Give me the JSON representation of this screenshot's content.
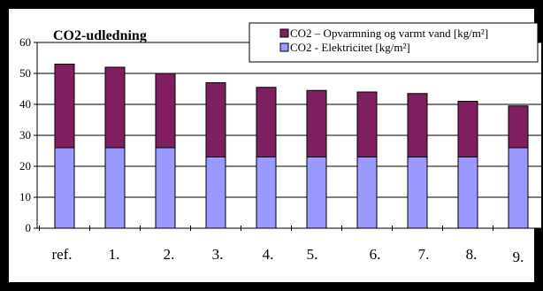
{
  "chart_data": {
    "type": "bar",
    "stacked": true,
    "title": "CO2-udledning",
    "xlabel": "",
    "ylabel": "",
    "categories": [
      "ref.",
      "1.",
      "2.",
      "3.",
      "4.",
      "5.",
      "6.",
      "7.",
      "8.",
      "9."
    ],
    "ylim": [
      0,
      60
    ],
    "yticks": [
      0,
      10,
      20,
      30,
      40,
      50,
      60
    ],
    "grid": true,
    "legend_position": "top-right",
    "series": [
      {
        "name": "CO2 - Elektricitet [kg/m²]",
        "color": "#9999ff",
        "values": [
          26,
          26,
          26,
          23,
          23,
          23,
          23,
          23,
          23,
          26
        ]
      },
      {
        "name": "CO2 – Opvarmning og varmt vand [kg/m²]",
        "color": "#7f1f5f",
        "values": [
          27,
          26,
          24,
          24,
          22.5,
          21.5,
          21,
          20.5,
          18,
          13.5
        ]
      }
    ]
  }
}
